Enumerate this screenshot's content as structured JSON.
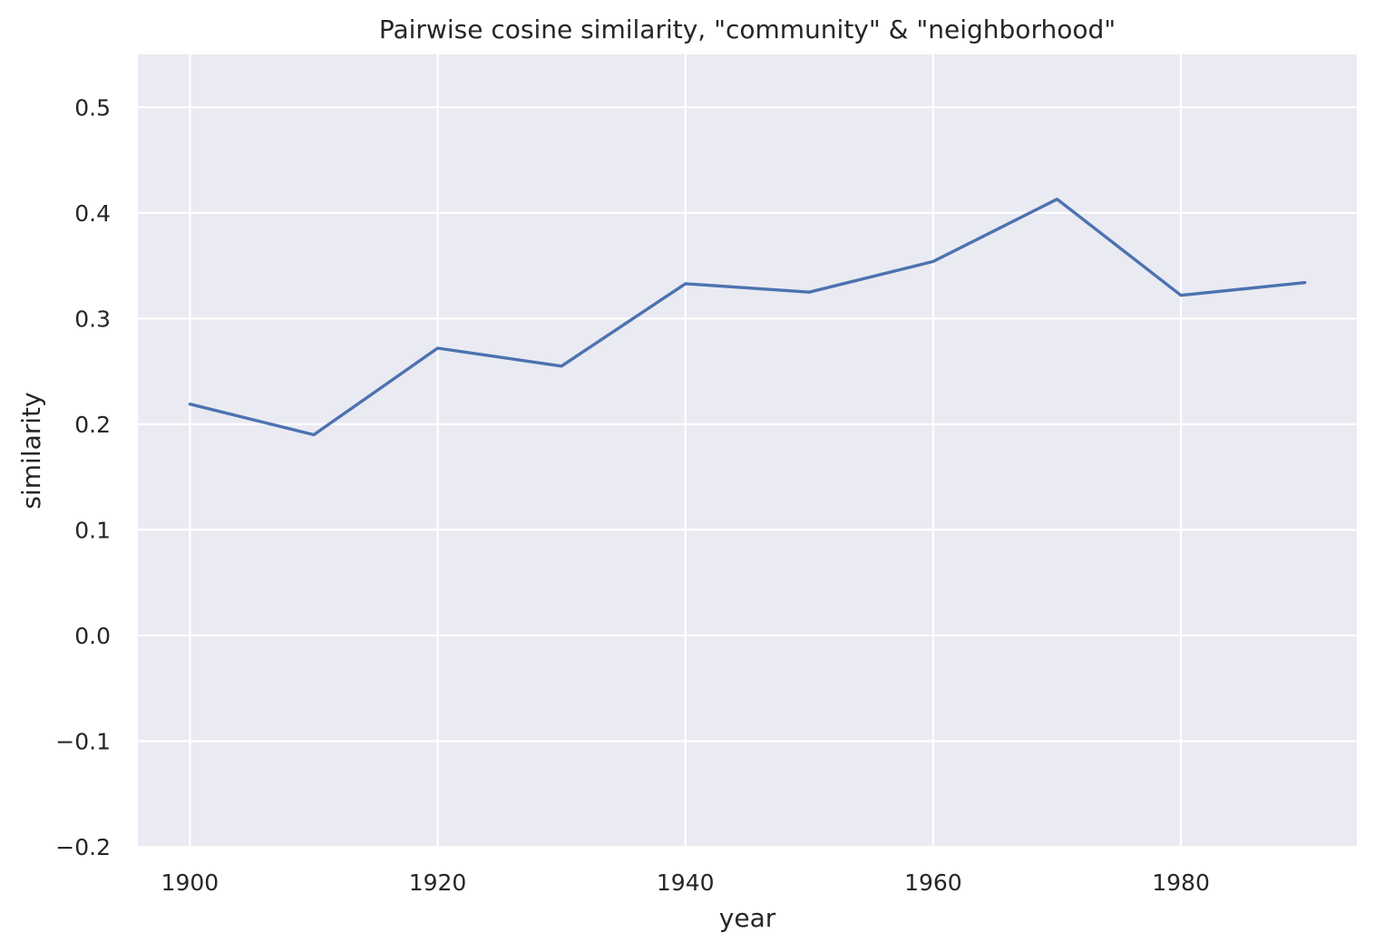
{
  "chart_data": {
    "type": "line",
    "title": "Pairwise cosine similarity, \"community\" & \"neighborhood\"",
    "xlabel": "year",
    "ylabel": "similarity",
    "xlim": [
      1895.8,
      1994.2
    ],
    "ylim": [
      -0.2,
      0.55
    ],
    "xticks": [
      1900,
      1920,
      1940,
      1960,
      1980
    ],
    "xtick_labels": [
      "1900",
      "1920",
      "1940",
      "1960",
      "1980"
    ],
    "yticks": [
      -0.2,
      -0.1,
      0.0,
      0.1,
      0.2,
      0.3,
      0.4,
      0.5
    ],
    "ytick_labels": [
      "−0.2",
      "−0.1",
      "0.0",
      "0.1",
      "0.2",
      "0.3",
      "0.4",
      "0.5"
    ],
    "grid": true,
    "series": [
      {
        "x": [
          1900,
          1910,
          1920,
          1930,
          1940,
          1950,
          1960,
          1970,
          1980,
          1990
        ],
        "values": [
          0.219,
          0.19,
          0.272,
          0.255,
          0.333,
          0.325,
          0.354,
          0.413,
          0.322,
          0.334
        ],
        "color": "#4c72b0"
      }
    ]
  }
}
